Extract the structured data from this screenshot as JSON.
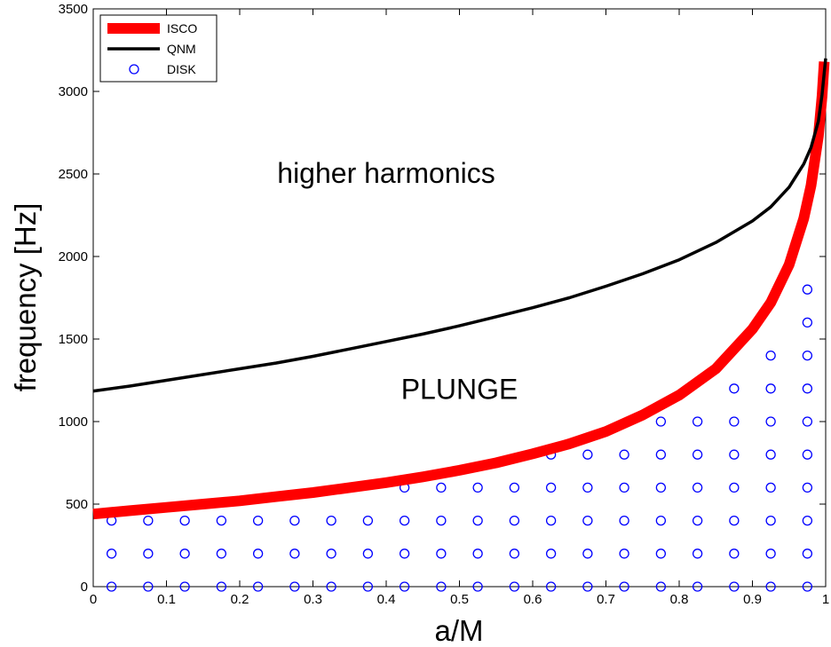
{
  "chart_data": {
    "type": "line",
    "xlabel": "a/M",
    "ylabel": "frequency [Hz]",
    "xlim": [
      0,
      1
    ],
    "ylim": [
      0,
      3500
    ],
    "xticks": [
      "0",
      "0.1",
      "0.2",
      "0.3",
      "0.4",
      "0.5",
      "0.6",
      "0.7",
      "0.8",
      "0.9",
      "1"
    ],
    "yticks": [
      "0",
      "500",
      "1000",
      "1500",
      "2000",
      "2500",
      "3000",
      "3500"
    ],
    "grid": false,
    "legend_position": "top-left",
    "series": [
      {
        "name": "ISCO",
        "style": "thick-line",
        "color": "#ff0000",
        "x": [
          0,
          0.05,
          0.1,
          0.15,
          0.2,
          0.25,
          0.3,
          0.35,
          0.4,
          0.45,
          0.5,
          0.55,
          0.6,
          0.65,
          0.7,
          0.75,
          0.8,
          0.85,
          0.9,
          0.925,
          0.95,
          0.97,
          0.98,
          0.99,
          0.995,
          0.998
        ],
        "y": [
          440,
          460,
          480,
          500,
          520,
          545,
          570,
          600,
          630,
          665,
          705,
          750,
          805,
          865,
          940,
          1040,
          1160,
          1320,
          1560,
          1720,
          1950,
          2230,
          2430,
          2730,
          2970,
          3180
        ]
      },
      {
        "name": "QNM",
        "style": "line",
        "color": "#000000",
        "x": [
          0,
          0.05,
          0.1,
          0.15,
          0.2,
          0.25,
          0.3,
          0.35,
          0.4,
          0.45,
          0.5,
          0.55,
          0.6,
          0.65,
          0.7,
          0.75,
          0.8,
          0.85,
          0.9,
          0.925,
          0.95,
          0.97,
          0.98,
          0.99,
          0.995,
          1.0
        ],
        "y": [
          1185,
          1215,
          1250,
          1285,
          1320,
          1355,
          1395,
          1440,
          1485,
          1530,
          1580,
          1635,
          1690,
          1750,
          1820,
          1895,
          1980,
          2085,
          2215,
          2300,
          2420,
          2560,
          2660,
          2820,
          2980,
          3200
        ]
      },
      {
        "name": "DISK",
        "style": "markers",
        "color": "#0000ff",
        "columns": [
          {
            "x": 0.025,
            "y": [
              0,
              200,
              400
            ]
          },
          {
            "x": 0.075,
            "y": [
              0,
              200,
              400
            ]
          },
          {
            "x": 0.125,
            "y": [
              0,
              200,
              400
            ]
          },
          {
            "x": 0.175,
            "y": [
              0,
              200,
              400
            ]
          },
          {
            "x": 0.225,
            "y": [
              0,
              200,
              400
            ]
          },
          {
            "x": 0.275,
            "y": [
              0,
              200,
              400
            ]
          },
          {
            "x": 0.325,
            "y": [
              0,
              200,
              400
            ]
          },
          {
            "x": 0.375,
            "y": [
              0,
              200,
              400
            ]
          },
          {
            "x": 0.425,
            "y": [
              0,
              200,
              400,
              600
            ]
          },
          {
            "x": 0.475,
            "y": [
              0,
              200,
              400,
              600
            ]
          },
          {
            "x": 0.525,
            "y": [
              0,
              200,
              400,
              600
            ]
          },
          {
            "x": 0.575,
            "y": [
              0,
              200,
              400,
              600
            ]
          },
          {
            "x": 0.625,
            "y": [
              0,
              200,
              400,
              600,
              800
            ]
          },
          {
            "x": 0.675,
            "y": [
              0,
              200,
              400,
              600,
              800
            ]
          },
          {
            "x": 0.725,
            "y": [
              0,
              200,
              400,
              600,
              800
            ]
          },
          {
            "x": 0.775,
            "y": [
              0,
              200,
              400,
              600,
              800,
              1000
            ]
          },
          {
            "x": 0.825,
            "y": [
              0,
              200,
              400,
              600,
              800,
              1000
            ]
          },
          {
            "x": 0.875,
            "y": [
              0,
              200,
              400,
              600,
              800,
              1000,
              1200
            ]
          },
          {
            "x": 0.925,
            "y": [
              0,
              200,
              400,
              600,
              800,
              1000,
              1200,
              1400
            ]
          },
          {
            "x": 0.975,
            "y": [
              0,
              200,
              400,
              600,
              800,
              1000,
              1200,
              1400,
              1600,
              1800
            ]
          }
        ]
      }
    ],
    "annotations": [
      {
        "text": "higher harmonics",
        "x": 0.4,
        "y": 2500
      },
      {
        "text": "PLUNGE",
        "x": 0.5,
        "y": 1190
      }
    ]
  }
}
